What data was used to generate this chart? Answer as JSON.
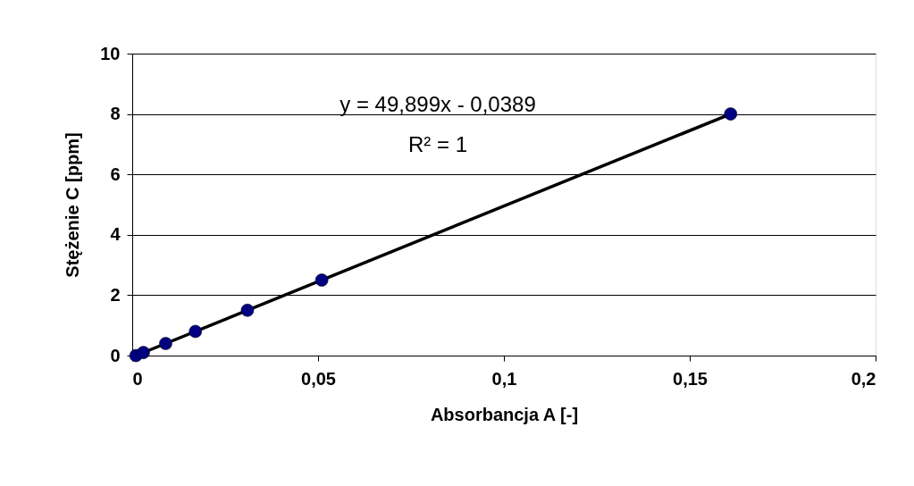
{
  "chart_data": {
    "type": "scatter",
    "xlabel": "Absorbancja    A [-]",
    "ylabel": "Stężenie   C [ppm]",
    "x": [
      0.001,
      0.003,
      0.009,
      0.017,
      0.031,
      0.051,
      0.161
    ],
    "series": [
      {
        "color": "#000080",
        "values": [
          0,
          0.1,
          0.4,
          0.8,
          1.5,
          2.5,
          8
        ],
        "marker": "circle"
      },
      {
        "type": "line",
        "color": "#000000",
        "x": [
          0.001,
          0.161
        ],
        "values": [
          0,
          8
        ],
        "marker": "none"
      }
    ],
    "xlim": [
      0,
      0.2
    ],
    "ylim": [
      0,
      10
    ],
    "xticks": [
      0,
      {
        "value": 0.05,
        "label": "0,05"
      },
      {
        "value": 0.1,
        "label": "0,1"
      },
      {
        "value": 0.15,
        "label": "0,15"
      },
      {
        "value": 0.2,
        "label": "0,2"
      }
    ],
    "yticks": [
      0,
      2,
      4,
      6,
      8,
      10
    ],
    "grid": "y",
    "annotations": [
      "y = 49,899x - 0,0389",
      "R² = 1"
    ]
  }
}
